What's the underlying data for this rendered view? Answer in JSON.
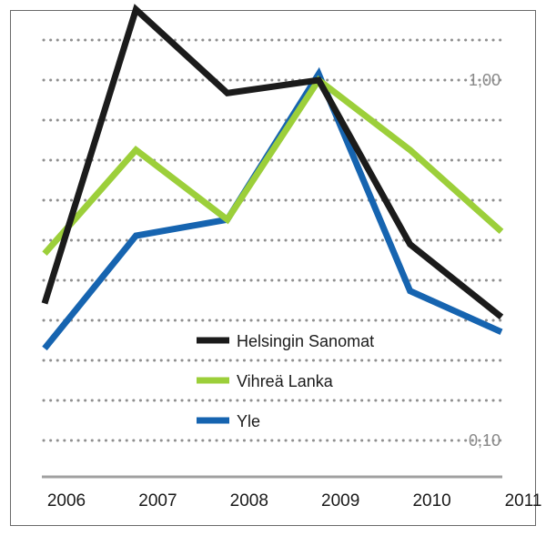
{
  "chart_data": {
    "type": "line",
    "title": "",
    "xlabel": "",
    "ylabel": "",
    "x": [
      "2006",
      "2007",
      "2008",
      "2009",
      "2010",
      "2011"
    ],
    "y_scale": "log",
    "ylim": [
      0.095,
      1.4
    ],
    "y_ticks": [
      0.1,
      1.0
    ],
    "y_tick_labels": [
      "0,10",
      "1,00"
    ],
    "grid": true,
    "legend_position": "center-bottom",
    "series": [
      {
        "name": "Helsingin Sanomat",
        "color": "#1b1b1b",
        "values": [
          0.24,
          1.57,
          0.92,
          1.0,
          0.35,
          0.22
        ]
      },
      {
        "name": "Vihreä Lanka",
        "color": "#9ccf3a",
        "values": [
          0.33,
          0.64,
          0.41,
          1.0,
          0.64,
          0.38
        ]
      },
      {
        "name": "Yle",
        "color": "#1664b0",
        "values": [
          0.18,
          0.37,
          0.41,
          1.04,
          0.26,
          0.2
        ]
      }
    ]
  }
}
